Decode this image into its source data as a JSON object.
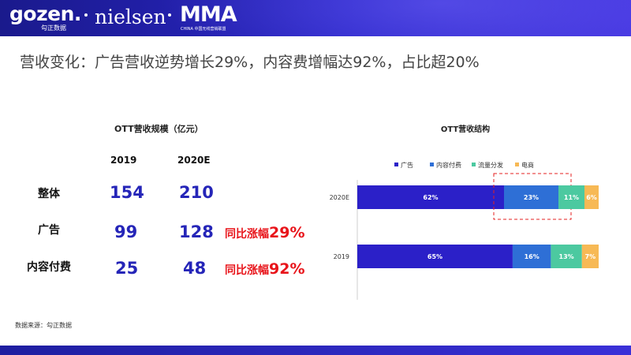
{
  "header": {
    "logo_gozen": "gozen.",
    "logo_gozen_sub": "勾正数据",
    "logo_nielsen": "nielsen",
    "logo_mma": "MMA",
    "logo_mma_sub": "CHINA 中国无线营销联盟"
  },
  "slide": {
    "title": "营收变化：广告营收逆势增长29%，内容费增幅达92%，占比超20%",
    "source": "数据来源：勾正数据"
  },
  "table": {
    "title": "OTT营收规模（亿元）",
    "years": [
      "2019",
      "2020E"
    ],
    "rows": [
      {
        "label": "整体",
        "v2019": "154",
        "v2020": "210",
        "growth_text": "",
        "growth_pct": ""
      },
      {
        "label": "广告",
        "v2019": "99",
        "v2020": "128",
        "growth_text": "同比涨幅",
        "growth_pct": "29%"
      },
      {
        "label": "内容付费",
        "v2019": "25",
        "v2020": "48",
        "growth_text": "同比涨幅",
        "growth_pct": "92%"
      }
    ]
  },
  "chart_data": {
    "type": "bar",
    "orientation": "horizontal",
    "stacked": true,
    "title": "OTT营收结构",
    "categories": [
      "2020E",
      "2019"
    ],
    "series": [
      {
        "name": "广告",
        "color": "#2b20c8",
        "values": [
          62,
          65
        ]
      },
      {
        "name": "内容付费",
        "color": "#2e6fd6",
        "values": [
          23,
          16
        ]
      },
      {
        "name": "流量分发",
        "color": "#4cc9a0",
        "values": [
          11,
          13
        ]
      },
      {
        "name": "电商",
        "color": "#f7b955",
        "values": [
          6,
          7
        ]
      }
    ],
    "value_labels": [
      "62%",
      "23%",
      "11%",
      "6%",
      "65%",
      "16%",
      "13%",
      "7%"
    ],
    "legend_position": "top",
    "highlight": {
      "category": "2020E",
      "series": "内容付费",
      "style": "dashed-red-box"
    }
  }
}
